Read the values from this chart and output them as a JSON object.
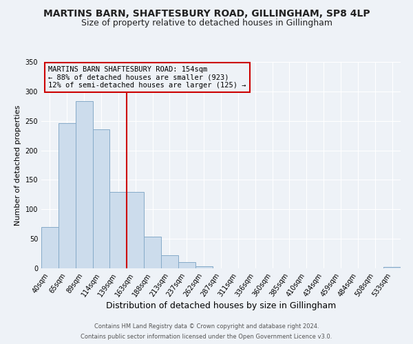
{
  "title": "MARTINS BARN, SHAFTESBURY ROAD, GILLINGHAM, SP8 4LP",
  "subtitle": "Size of property relative to detached houses in Gillingham",
  "xlabel": "Distribution of detached houses by size in Gillingham",
  "ylabel": "Number of detached properties",
  "bar_labels": [
    "40sqm",
    "65sqm",
    "89sqm",
    "114sqm",
    "139sqm",
    "163sqm",
    "188sqm",
    "213sqm",
    "237sqm",
    "262sqm",
    "287sqm",
    "311sqm",
    "336sqm",
    "360sqm",
    "385sqm",
    "410sqm",
    "434sqm",
    "459sqm",
    "484sqm",
    "508sqm",
    "533sqm"
  ],
  "bar_values": [
    70,
    246,
    284,
    236,
    130,
    130,
    54,
    22,
    10,
    4,
    0,
    0,
    0,
    0,
    0,
    0,
    0,
    0,
    0,
    0,
    2
  ],
  "bar_color": "#ccdcec",
  "bar_edgecolor": "#85aac8",
  "vline_x": 4.5,
  "vline_color": "#cc0000",
  "ylim": [
    0,
    350
  ],
  "yticks": [
    0,
    50,
    100,
    150,
    200,
    250,
    300,
    350
  ],
  "annotation_text": "MARTINS BARN SHAFTESBURY ROAD: 154sqm\n← 88% of detached houses are smaller (923)\n12% of semi-detached houses are larger (125) →",
  "annotation_box_edgecolor": "#cc0000",
  "footer_line1": "Contains HM Land Registry data © Crown copyright and database right 2024.",
  "footer_line2": "Contains public sector information licensed under the Open Government Licence v3.0.",
  "bg_color": "#eef2f7",
  "grid_color": "#ffffff",
  "title_fontsize": 10,
  "subtitle_fontsize": 9,
  "xlabel_fontsize": 9,
  "ylabel_fontsize": 8,
  "tick_fontsize": 7,
  "annotation_fontsize": 7.5,
  "footer_fontsize": 6
}
